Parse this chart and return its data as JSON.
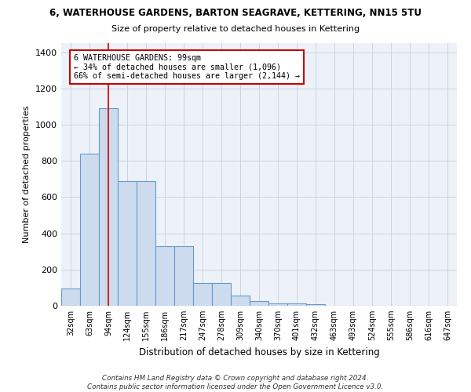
{
  "title1": "6, WATERHOUSE GARDENS, BARTON SEAGRAVE, KETTERING, NN15 5TU",
  "title2": "Size of property relative to detached houses in Kettering",
  "xlabel": "Distribution of detached houses by size in Kettering",
  "ylabel": "Number of detached properties",
  "categories": [
    "32sqm",
    "63sqm",
    "94sqm",
    "124sqm",
    "155sqm",
    "186sqm",
    "217sqm",
    "247sqm",
    "278sqm",
    "309sqm",
    "340sqm",
    "370sqm",
    "401sqm",
    "432sqm",
    "463sqm",
    "493sqm",
    "524sqm",
    "555sqm",
    "586sqm",
    "616sqm",
    "647sqm"
  ],
  "values": [
    97,
    840,
    1090,
    690,
    690,
    330,
    330,
    125,
    125,
    58,
    28,
    15,
    15,
    8,
    0,
    0,
    0,
    0,
    0,
    0,
    0
  ],
  "bar_color": "#ccdcee",
  "bar_edge_color": "#6699cc",
  "grid_color": "#c8d4e4",
  "bg_color": "#edf2f8",
  "annotation_box_text": "6 WATERHOUSE GARDENS: 99sqm\n← 34% of detached houses are smaller (1,096)\n66% of semi-detached houses are larger (2,144) →",
  "property_line_x": 2,
  "property_line_color": "#cc0000",
  "footer": "Contains HM Land Registry data © Crown copyright and database right 2024.\nContains public sector information licensed under the Open Government Licence v3.0.",
  "ylim": [
    0,
    1450
  ],
  "yticks": [
    0,
    200,
    400,
    600,
    800,
    1000,
    1200,
    1400
  ]
}
